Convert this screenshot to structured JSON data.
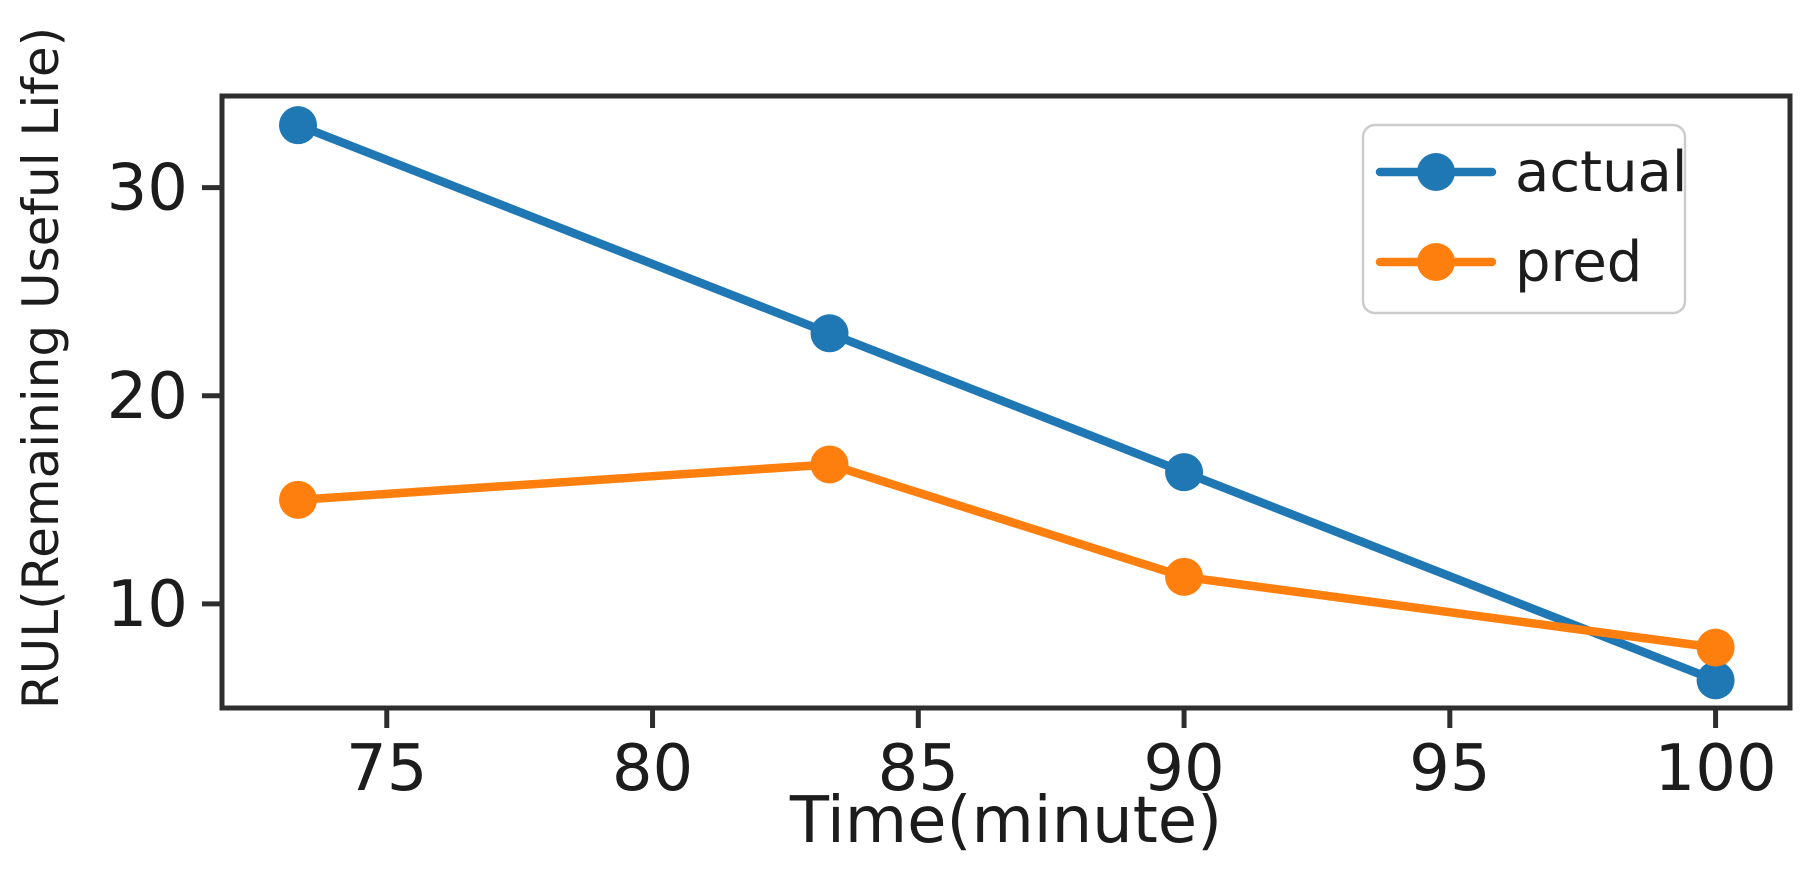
{
  "chart_data": {
    "type": "line",
    "x": [
      73.33,
      83.33,
      90,
      100
    ],
    "series": [
      {
        "name": "actual",
        "color": "#1f77b4",
        "values": [
          33,
          23,
          16.33,
          6.33
        ]
      },
      {
        "name": "pred",
        "color": "#ff7f0e",
        "values": [
          15,
          16.7,
          11.3,
          7.9
        ]
      }
    ],
    "title": "",
    "xlabel": "Time(minute)",
    "ylabel": "RUL(Remaining Useful Life)",
    "xticks": [
      75,
      80,
      85,
      90,
      95,
      100
    ],
    "yticks": [
      10,
      20,
      30
    ],
    "xlim": [
      71.9,
      101.4
    ],
    "ylim": [
      5.0,
      34.4
    ],
    "grid": false,
    "marker": "circle",
    "legend": {
      "position": "upper-right",
      "entries": [
        "actual",
        "pred"
      ]
    }
  },
  "colors": {
    "actual": "#1f77b4",
    "pred": "#ff7f0e",
    "spine": "#2e2e2e",
    "tick": "#2e2e2e",
    "text": "#1c1c1c",
    "background": "#ffffff",
    "legend_border": "#cccccc",
    "legend_background": "#ffffff"
  }
}
